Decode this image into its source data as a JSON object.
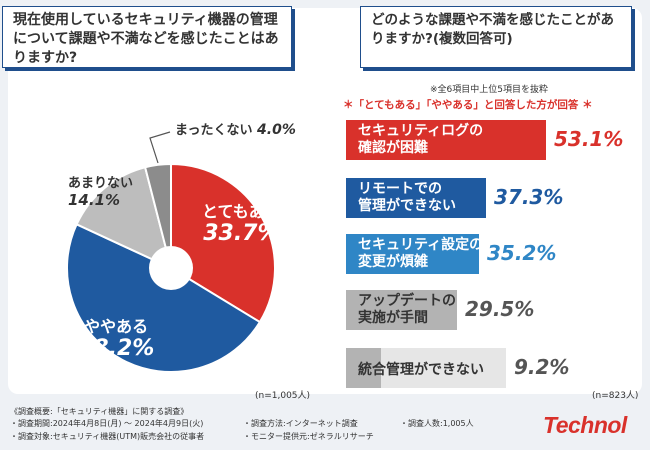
{
  "question1": "現在使用しているセキュリティ機器の管理について課題や不満などを感じたことはありますか?",
  "question2": "どのような課題や不満を感じたことがありますか?(複数回答可)",
  "note_top": "※全6項目中上位5項目を抜粋",
  "note_red": "＊「とてもある」「ややある」と回答した方が回答 ＊",
  "n_left": "(n=1,005人)",
  "n_right": "(n=823人)",
  "colors": {
    "red": "#d9312b",
    "navy": "#1f5aa0",
    "blue": "#2f86c6",
    "gray_bar": "#b3b3b3",
    "light_gray": "#e6e6e6",
    "pie_gray": "#bdbdbd",
    "pie_dark": "#8c8c8c"
  },
  "chart_data": [
    {
      "type": "pie",
      "title": "現在使用しているセキュリティ機器の管理について課題や不満などを感じたことはありますか?",
      "slices": [
        {
          "label": "とてもある",
          "value": 33.7,
          "display": "33.7%",
          "color": "#d9312b"
        },
        {
          "label": "ややある",
          "value": 48.2,
          "display": "48.2%",
          "color": "#1f5aa0"
        },
        {
          "label": "あまりない",
          "value": 14.1,
          "display": "14.1%",
          "color": "#bdbdbd"
        },
        {
          "label": "まったくない",
          "value": 4.0,
          "display": "4.0%",
          "color": "#8c8c8c"
        }
      ],
      "n": "(n=1,005人)"
    },
    {
      "type": "bar",
      "orientation": "horizontal",
      "title": "どのような課題や不満を感じたことがありますか?(複数回答可)",
      "categories": [
        "セキュリティログの確認が困難",
        "リモートでの管理ができない",
        "セキュリティ設定の変更が煩雑",
        "アップデートの実施が手間",
        "統合管理ができない"
      ],
      "values": [
        53.1,
        37.3,
        35.2,
        29.5,
        9.2
      ],
      "xlim": [
        0,
        53.1
      ],
      "n": "(n=823人)"
    }
  ],
  "bars": [
    {
      "line1": "セキュリティログの",
      "line2": "確認が困難",
      "value": "53.1%",
      "color": "#d9312b",
      "text_color": "#ffffff",
      "value_color": "#d9312b"
    },
    {
      "line1": "リモートでの",
      "line2": "管理ができない",
      "value": "37.3%",
      "color": "#1f5aa0",
      "text_color": "#ffffff",
      "value_color": "#1f5aa0"
    },
    {
      "line1": "セキュリティ設定の",
      "line2": "変更が煩雑",
      "value": "35.2%",
      "color": "#2f86c6",
      "text_color": "#ffffff",
      "value_color": "#2f86c6"
    },
    {
      "line1": "アップデートの",
      "line2": "実施が手間",
      "value": "29.5%",
      "color": "#b3b3b3",
      "text_color": "#333333",
      "value_color": "#555555"
    },
    {
      "line1": "統合管理ができない",
      "line2": "",
      "value": "9.2%",
      "color": "#b3b3b3",
      "text_color": "#333333",
      "value_color": "#555555"
    }
  ],
  "footer": {
    "title": "《調査概要:「セキュリティ機器」に関する調査》",
    "period": "・調査期間:2024年4月8日(月) ～ 2024年4月9日(火)",
    "method": "・調査方法:インターネット調査",
    "people": "・調査人数:1,005人",
    "target": "・調査対象:セキュリティ機器(UTM)販売会社の従事者",
    "monitor": "・モニター提供元:ゼネラルリサーチ"
  },
  "logo": "Technol"
}
